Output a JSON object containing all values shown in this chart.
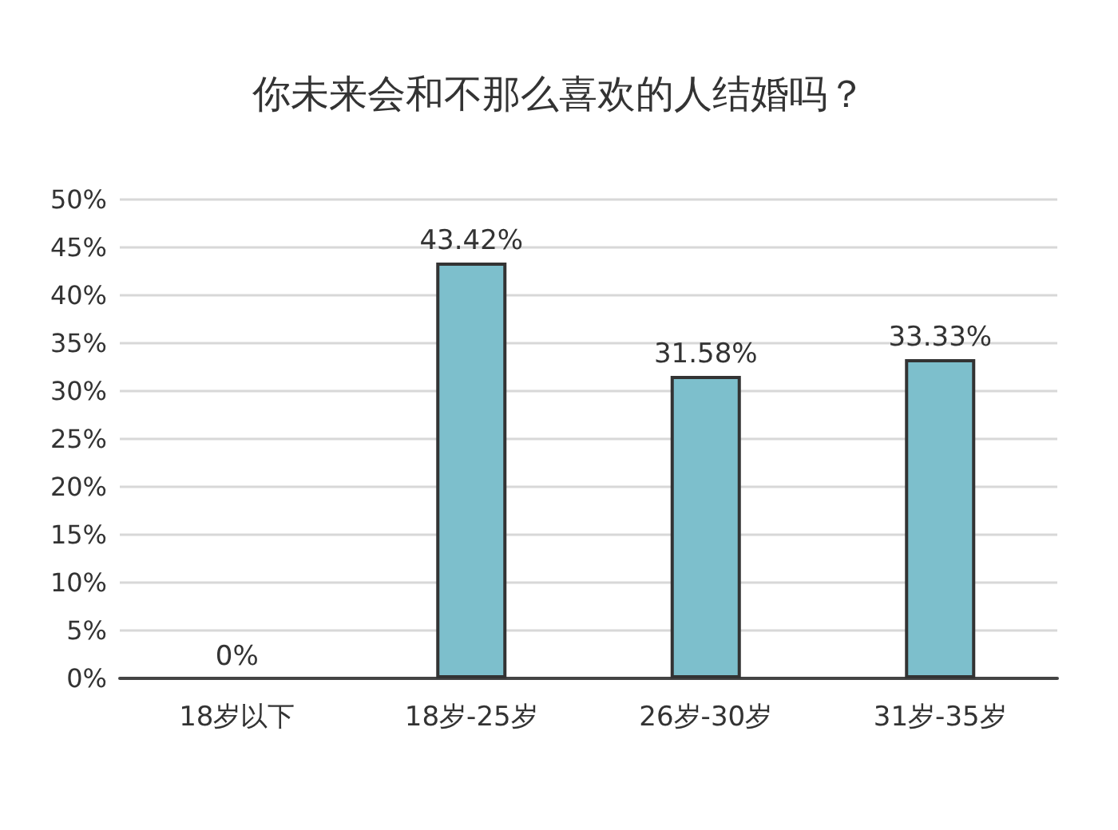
{
  "chart_data": {
    "type": "bar",
    "title": "你未来会和不那么喜欢的人结婚吗？",
    "categories": [
      "18岁以下",
      "18岁-25岁",
      "26岁-30岁",
      "31岁-35岁"
    ],
    "values": [
      0,
      43.42,
      31.58,
      33.33
    ],
    "value_labels": [
      "0%",
      "43.42%",
      "31.58%",
      "33.33%"
    ],
    "color": "#7dbfcc",
    "ylim": [
      0,
      50
    ],
    "yticks": [
      {
        "value": 0,
        "label": "0%"
      },
      {
        "value": 5,
        "label": "5%"
      },
      {
        "value": 10,
        "label": "10%"
      },
      {
        "value": 15,
        "label": "15%"
      },
      {
        "value": 20,
        "label": "20%"
      },
      {
        "value": 25,
        "label": "25%"
      },
      {
        "value": 30,
        "label": "30%"
      },
      {
        "value": 35,
        "label": "35%"
      },
      {
        "value": 40,
        "label": "40%"
      },
      {
        "value": 45,
        "label": "45%"
      },
      {
        "value": 50,
        "label": "50%"
      }
    ],
    "grid": "y"
  }
}
